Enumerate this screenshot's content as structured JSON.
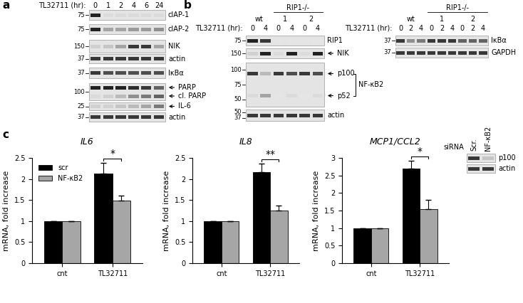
{
  "panel_labels": [
    "a",
    "b",
    "c"
  ],
  "blots": [
    {
      "condition_label": "TL32711 (hr):",
      "lanes": [
        "0",
        "1",
        "2",
        "4",
        "6",
        "24"
      ],
      "rows": [
        {
          "markers": [
            75
          ],
          "bands": [
            {
              "name": "cIAP-1",
              "arrow": false,
              "intensity": [
                0.9,
                0.05,
                0.05,
                0.05,
                0.05,
                0.05
              ]
            }
          ]
        },
        {
          "markers": [
            75
          ],
          "bands": [
            {
              "name": "cIAP-2",
              "arrow": false,
              "intensity": [
                0.9,
                0.3,
                0.3,
                0.35,
                0.35,
                0.4
              ]
            }
          ]
        },
        {
          "markers": [
            150
          ],
          "bands": [
            {
              "name": "NIK",
              "arrow": false,
              "intensity": [
                0.1,
                0.15,
                0.3,
                0.8,
                0.8,
                0.3
              ]
            }
          ]
        },
        {
          "markers": [
            37
          ],
          "bands": [
            {
              "name": "actin",
              "arrow": false,
              "intensity": [
                0.8,
                0.8,
                0.8,
                0.8,
                0.8,
                0.8
              ]
            }
          ]
        },
        {
          "markers": [
            37
          ],
          "bands": [
            {
              "name": "IκBα",
              "arrow": false,
              "intensity": [
                0.8,
                0.7,
                0.7,
                0.7,
                0.7,
                0.7
              ]
            }
          ]
        },
        {
          "markers": [
            100
          ],
          "bands": [
            {
              "name": "PARP",
              "arrow": true,
              "intensity": [
                0.9,
                0.9,
                0.9,
                0.85,
                0.8,
                0.6
              ]
            },
            {
              "name": "cl. PARP",
              "arrow": true,
              "intensity": [
                0.05,
                0.1,
                0.2,
                0.4,
                0.5,
                0.6
              ]
            }
          ]
        },
        {
          "markers": [
            25
          ],
          "bands": [
            {
              "name": "IL-6",
              "arrow": true,
              "intensity": [
                0.1,
                0.1,
                0.15,
                0.2,
                0.3,
                0.5
              ]
            }
          ]
        },
        {
          "markers": [
            37
          ],
          "bands": [
            {
              "name": "actin",
              "arrow": false,
              "intensity": [
                0.8,
                0.8,
                0.8,
                0.8,
                0.8,
                0.8
              ]
            }
          ]
        }
      ]
    },
    {
      "condition_label": "TL32711 (hr):",
      "header": {
        "text": "RIP1-/-",
        "groups": [
          1,
          2
        ]
      },
      "groups": [
        {
          "label": "wt",
          "lanes": [
            "0",
            "4"
          ]
        },
        {
          "label": "1",
          "lanes": [
            "0",
            "4"
          ]
        },
        {
          "label": "2",
          "lanes": [
            "0",
            "4"
          ]
        }
      ],
      "rows": [
        {
          "markers": [
            75
          ],
          "bands": [
            {
              "name": "RIP1",
              "arrow": false,
              "intensity": [
                0.9,
                0.8,
                0.0,
                0.0,
                0.0,
                0.0
              ]
            }
          ]
        },
        {
          "markers": [
            150
          ],
          "bands": [
            {
              "name": "NIK",
              "arrow": true,
              "intensity": [
                0.1,
                0.9,
                0.05,
                0.9,
                0.05,
                0.9
              ]
            }
          ]
        },
        {
          "markers": [
            100,
            75,
            50
          ],
          "bracket": "NF-κB2",
          "bands": [
            {
              "name": "p100",
              "arrow": true,
              "intensity": [
                0.8,
                0.2,
                0.8,
                0.7,
                0.8,
                0.7
              ]
            },
            {
              "name": "p52",
              "arrow": true,
              "intensity": [
                0.05,
                0.3,
                0.0,
                0.05,
                0.0,
                0.05
              ]
            }
          ]
        },
        {
          "markers": [
            50,
            37
          ],
          "bands": [
            {
              "name": "actin",
              "arrow": false,
              "intensity": [
                0.8,
                0.8,
                0.8,
                0.8,
                0.8,
                0.8
              ]
            }
          ]
        }
      ]
    },
    {
      "condition_label": "TL32711 (hr):",
      "header": {
        "text": "RIP1-/-",
        "groups": [
          1,
          2
        ]
      },
      "groups": [
        {
          "label": "wt",
          "lanes": [
            "0",
            "2",
            "4"
          ]
        },
        {
          "label": "1",
          "lanes": [
            "0",
            "2",
            "4"
          ]
        },
        {
          "label": "2",
          "lanes": [
            "0",
            "2",
            "4"
          ]
        }
      ],
      "rows": [
        {
          "markers": [
            37
          ],
          "bands": [
            {
              "name": "IκBα",
              "arrow": false,
              "intensity": [
                0.8,
                0.4,
                0.5,
                0.8,
                0.8,
                0.8,
                0.6,
                0.6,
                0.6
              ]
            }
          ]
        },
        {
          "markers": [
            37
          ],
          "bands": [
            {
              "name": "GAPDH",
              "arrow": false,
              "intensity": [
                0.8,
                0.8,
                0.8,
                0.8,
                0.8,
                0.8,
                0.8,
                0.8,
                0.8
              ]
            }
          ]
        }
      ]
    },
    {
      "condition_label": "siRNA",
      "lanes": [
        "Scr.",
        "NF-κB2"
      ],
      "rows": [
        {
          "markers": [],
          "bands": [
            {
              "name": "p100",
              "arrow": false,
              "intensity": [
                0.8,
                0.15
              ]
            }
          ]
        },
        {
          "markers": [],
          "bands": [
            {
              "name": "actin",
              "arrow": false,
              "intensity": [
                0.8,
                0.8
              ]
            }
          ]
        }
      ]
    }
  ],
  "chart_data": [
    {
      "type": "bar",
      "title": "IL6",
      "ylabel": "mRNA, fold increase",
      "categories": [
        "cnt",
        "TL32711"
      ],
      "series": [
        {
          "name": "scr",
          "color": "#000000",
          "values": [
            1,
            2.13
          ],
          "errors": [
            0,
            0.25
          ]
        },
        {
          "name": "NF-κB2",
          "color": "#a6a6a6",
          "values": [
            1,
            1.48
          ],
          "errors": [
            0,
            0.13
          ]
        }
      ],
      "ylim": [
        0,
        2.5
      ],
      "yticks": [
        0,
        0.5,
        1,
        1.5,
        2,
        2.5
      ],
      "significance": {
        "category": "TL32711",
        "label": "*"
      },
      "legend": "upper left"
    },
    {
      "type": "bar",
      "title": "IL8",
      "ylabel": "mRNA, fold increase",
      "categories": [
        "cnt",
        "TL32711"
      ],
      "series": [
        {
          "name": "scr",
          "color": "#000000",
          "values": [
            1,
            2.17
          ],
          "errors": [
            0,
            0.2
          ]
        },
        {
          "name": "NF-κB2",
          "color": "#a6a6a6",
          "values": [
            1,
            1.25
          ],
          "errors": [
            0,
            0.12
          ]
        }
      ],
      "ylim": [
        0,
        2.5
      ],
      "yticks": [
        0,
        0.5,
        1,
        1.5,
        2,
        2.5
      ],
      "significance": {
        "category": "TL32711",
        "label": "**"
      }
    },
    {
      "type": "bar",
      "title": "MCP1/CCL2",
      "ylabel": "mRNA, fold increase",
      "categories": [
        "cnt",
        "TL32711"
      ],
      "series": [
        {
          "name": "scr",
          "color": "#000000",
          "values": [
            1,
            2.7
          ],
          "errors": [
            0,
            0.22
          ]
        },
        {
          "name": "NF-κB2",
          "color": "#a6a6a6",
          "values": [
            1,
            1.55
          ],
          "errors": [
            0,
            0.25
          ]
        }
      ],
      "ylim": [
        0,
        3
      ],
      "yticks": [
        0,
        0.5,
        1,
        1.5,
        2,
        2.5,
        3
      ],
      "significance": {
        "category": "TL32711",
        "label": "*"
      }
    }
  ]
}
